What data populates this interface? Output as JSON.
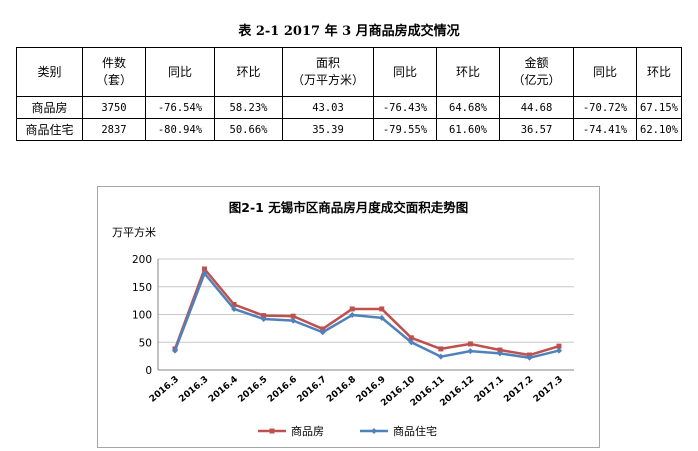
{
  "table": {
    "title": "表 2-1   2017 年 3 月商品房成交情况",
    "headers": [
      [
        "类别"
      ],
      [
        "件数",
        "（套）"
      ],
      [
        "同比"
      ],
      [
        "环比"
      ],
      [
        "面积",
        "（万平方米）"
      ],
      [
        "同比"
      ],
      [
        "环比"
      ],
      [
        "金额",
        "（亿元）"
      ],
      [
        "同比"
      ],
      [
        "环比"
      ]
    ],
    "rows": [
      [
        "商品房",
        "3750",
        "-76.54%",
        "58.23%",
        "43.03",
        "-76.43%",
        "64.68%",
        "44.68",
        "-70.72%",
        "67.15%"
      ],
      [
        "商品住宅",
        "2837",
        "-80.94%",
        "50.66%",
        "35.39",
        "-79.55%",
        "61.60%",
        "36.57",
        "-74.41%",
        "62.10%"
      ]
    ]
  },
  "chart_data": {
    "type": "line",
    "title": "图2-1  无锡市区商品房月度成交面积走势图",
    "ylabel": "万平方米",
    "xlabel": "",
    "categories": [
      "2016.3",
      "2016.3",
      "2016.4",
      "2016.5",
      "2016.6",
      "2016.7",
      "2016.8",
      "2016.9",
      "2016.10",
      "2016.11",
      "2016.12",
      "2017.1",
      "2017.2",
      "2017.3"
    ],
    "ylim": [
      0,
      200
    ],
    "yticks": [
      "0",
      "50",
      "100",
      "150",
      "200"
    ],
    "grid": true,
    "legend_position": "bottom",
    "series": [
      {
        "name": "商品房",
        "color": "#c0504d",
        "values": [
          38,
          182,
          118,
          98,
          97,
          74,
          110,
          110,
          58,
          38,
          47,
          36,
          27,
          43
        ]
      },
      {
        "name": "商品住宅",
        "color": "#4f81bd",
        "values": [
          35,
          174,
          110,
          92,
          89,
          68,
          99,
          94,
          50,
          24,
          34,
          30,
          22,
          35
        ]
      }
    ]
  }
}
